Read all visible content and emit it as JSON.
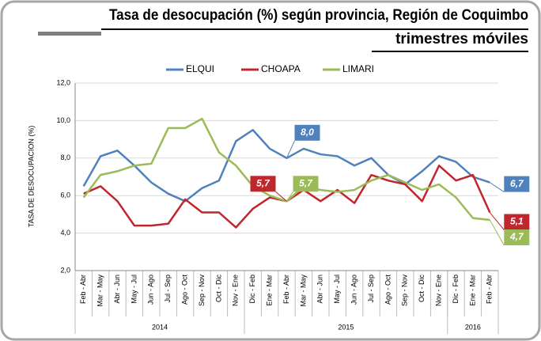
{
  "chart_data": {
    "type": "line",
    "title": "Tasa de desocupación (%) según provincia, Región de Coquimbo",
    "subtitle": "trimestres móviles",
    "y_label": "TASA DE DESOCUPACION (%)",
    "categories": [
      "Feb - Abr",
      "Mar - May",
      "Abr - Jun",
      "May - Jul",
      "Jun - Ago",
      "Jul - Sep",
      "Ago - Oct",
      "Sep - Nov",
      "Oct - Dic",
      "Nov - Ene",
      "Dic - Feb",
      "Ene - Mar",
      "Feb - Abr",
      "Mar - May",
      "Abr - Jun",
      "May - Jul",
      "Jun - Ago",
      "Jul - Sep",
      "Ago - Oct",
      "Sep - Nov",
      "Oct - Dic",
      "Nov - Ene",
      "Dic - Feb",
      "Ene - Mar",
      "Feb - Abr"
    ],
    "year_groups": [
      {
        "label": "2014",
        "count": 10
      },
      {
        "label": "2015",
        "count": 12
      },
      {
        "label": "2016",
        "count": 3
      }
    ],
    "series": [
      {
        "name": "ELQUI",
        "color": "#4f81bd",
        "values": [
          6.5,
          8.1,
          8.4,
          7.6,
          6.7,
          6.1,
          5.7,
          6.4,
          6.8,
          8.9,
          9.5,
          8.5,
          8.0,
          8.5,
          8.2,
          8.1,
          7.6,
          8.0,
          7.1,
          6.6,
          7.3,
          8.1,
          7.8,
          7.0,
          6.7
        ],
        "value_labels": [
          null,
          null,
          null,
          null,
          null,
          null,
          null,
          null,
          null,
          null,
          null,
          null,
          "8,0",
          null,
          null,
          null,
          null,
          null,
          null,
          null,
          null,
          null,
          null,
          null,
          "6,7"
        ]
      },
      {
        "name": "CHOAPA",
        "color": "#c0272d",
        "values": [
          6.1,
          6.5,
          5.7,
          4.4,
          4.4,
          4.5,
          5.8,
          5.1,
          5.1,
          4.3,
          5.3,
          5.9,
          5.7,
          6.3,
          5.7,
          6.3,
          5.6,
          7.1,
          6.8,
          6.6,
          5.7,
          7.6,
          6.8,
          7.1,
          5.1
        ],
        "value_labels": [
          null,
          null,
          null,
          null,
          null,
          null,
          null,
          null,
          null,
          null,
          null,
          null,
          "5,7",
          null,
          null,
          null,
          null,
          null,
          null,
          null,
          null,
          null,
          null,
          null,
          "5,1"
        ]
      },
      {
        "name": "LIMARI",
        "color": "#9bbb59",
        "values": [
          5.9,
          7.1,
          7.3,
          7.6,
          7.7,
          9.6,
          9.6,
          10.1,
          8.3,
          7.6,
          6.5,
          6.0,
          5.7,
          6.5,
          6.3,
          6.2,
          6.3,
          6.8,
          7.1,
          6.7,
          6.3,
          6.6,
          5.9,
          4.8,
          4.7
        ],
        "value_labels": [
          null,
          null,
          null,
          null,
          null,
          null,
          null,
          null,
          null,
          null,
          null,
          null,
          "5,7",
          null,
          null,
          null,
          null,
          null,
          null,
          null,
          null,
          null,
          null,
          null,
          "4,7"
        ]
      }
    ],
    "ylim": [
      2,
      12
    ],
    "yticks": [
      {
        "value": 2,
        "label": "2,0"
      },
      {
        "value": 4,
        "label": "4,0"
      },
      {
        "value": 6,
        "label": "6,0"
      },
      {
        "value": 8,
        "label": "8,0"
      },
      {
        "value": 10,
        "label": "10,0"
      },
      {
        "value": 12,
        "label": "12,0"
      }
    ],
    "grid": true
  }
}
